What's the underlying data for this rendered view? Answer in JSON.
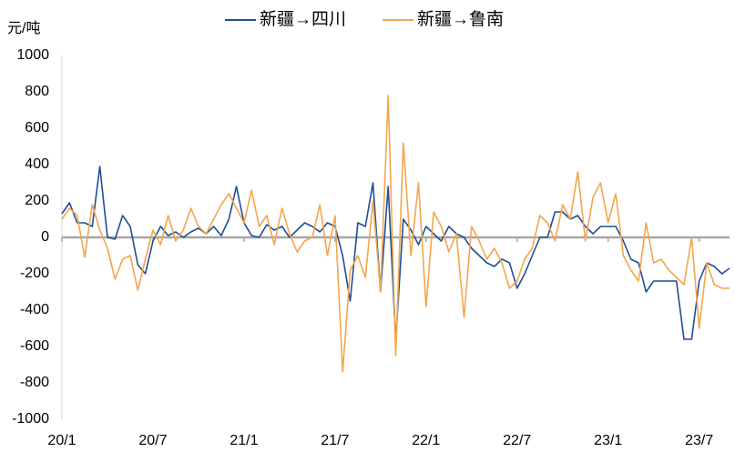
{
  "chart_data": {
    "type": "line",
    "y_label": "元/吨",
    "x": [
      0,
      0.5,
      1,
      1.5,
      2,
      2.5,
      3,
      3.5,
      4,
      4.5,
      5,
      5.5,
      6,
      6.5,
      7,
      7.5,
      8,
      8.5,
      9,
      9.5,
      10,
      10.5,
      11,
      11.5,
      12,
      12.5,
      13,
      13.5,
      14,
      14.5,
      15,
      15.5,
      16,
      16.5,
      17,
      17.5,
      18,
      18.5,
      19,
      19.5,
      20,
      20.5,
      21,
      21.5,
      22,
      22.5,
      23,
      23.5,
      24,
      24.5,
      25,
      25.5,
      26,
      26.5,
      27,
      27.5,
      28,
      28.5,
      29,
      29.5,
      30,
      30.5,
      31,
      31.5,
      32,
      32.5,
      33,
      33.5,
      34,
      34.5,
      35,
      35.5,
      36,
      36.5,
      37,
      37.5,
      38,
      38.5,
      39,
      39.5,
      40,
      40.5,
      41,
      41.5,
      42,
      42.5,
      43,
      43.5,
      44
    ],
    "xlim": [
      0,
      44
    ],
    "xticks": [
      {
        "value": 0,
        "label": "20/1"
      },
      {
        "value": 6,
        "label": "20/7"
      },
      {
        "value": 12,
        "label": "21/1"
      },
      {
        "value": 18,
        "label": "21/7"
      },
      {
        "value": 24,
        "label": "22/1"
      },
      {
        "value": 30,
        "label": "22/7"
      },
      {
        "value": 36,
        "label": "23/1"
      },
      {
        "value": 42,
        "label": "23/7"
      }
    ],
    "ylim": [
      -1000,
      1000
    ],
    "yticks": [
      -1000,
      -800,
      -600,
      -400,
      -200,
      0,
      200,
      400,
      600,
      800,
      1000
    ],
    "series": [
      {
        "name": "新疆→四川",
        "color": "#1f4e96",
        "values": [
          130,
          190,
          80,
          80,
          60,
          390,
          0,
          -10,
          120,
          60,
          -150,
          -200,
          -20,
          60,
          10,
          30,
          0,
          30,
          50,
          20,
          60,
          10,
          100,
          280,
          80,
          10,
          0,
          70,
          40,
          60,
          0,
          40,
          80,
          60,
          30,
          80,
          60,
          -100,
          -350,
          80,
          60,
          300,
          -300,
          280,
          -570,
          100,
          40,
          -40,
          60,
          20,
          -20,
          60,
          20,
          0,
          -60,
          -100,
          -140,
          -160,
          -120,
          -140,
          -280,
          -200,
          -100,
          0,
          0,
          140,
          140,
          100,
          120,
          60,
          20,
          60,
          60,
          60,
          -20,
          -120,
          -140,
          -300,
          -240,
          -240,
          -240,
          -240,
          -560,
          -560,
          -240,
          -140,
          -160,
          -200,
          -170
        ]
      },
      {
        "name": "新疆→鲁南",
        "color": "#f3a64d",
        "values": [
          100,
          160,
          120,
          -110,
          180,
          40,
          -60,
          -230,
          -120,
          -100,
          -290,
          -120,
          40,
          -40,
          120,
          -20,
          40,
          160,
          60,
          20,
          100,
          180,
          240,
          160,
          80,
          260,
          60,
          120,
          -40,
          160,
          20,
          -80,
          -20,
          0,
          180,
          -100,
          120,
          -740,
          -180,
          -100,
          -220,
          200,
          -300,
          780,
          -650,
          520,
          -100,
          300,
          -380,
          140,
          60,
          -80,
          20,
          -440,
          60,
          -20,
          -120,
          -60,
          -140,
          -280,
          -240,
          -120,
          -60,
          120,
          80,
          -20,
          180,
          100,
          360,
          -20,
          220,
          300,
          80,
          240,
          -100,
          -180,
          -240,
          80,
          -140,
          -120,
          -180,
          -220,
          -260,
          0,
          -500,
          -140,
          -260,
          -280,
          -280
        ]
      }
    ]
  }
}
